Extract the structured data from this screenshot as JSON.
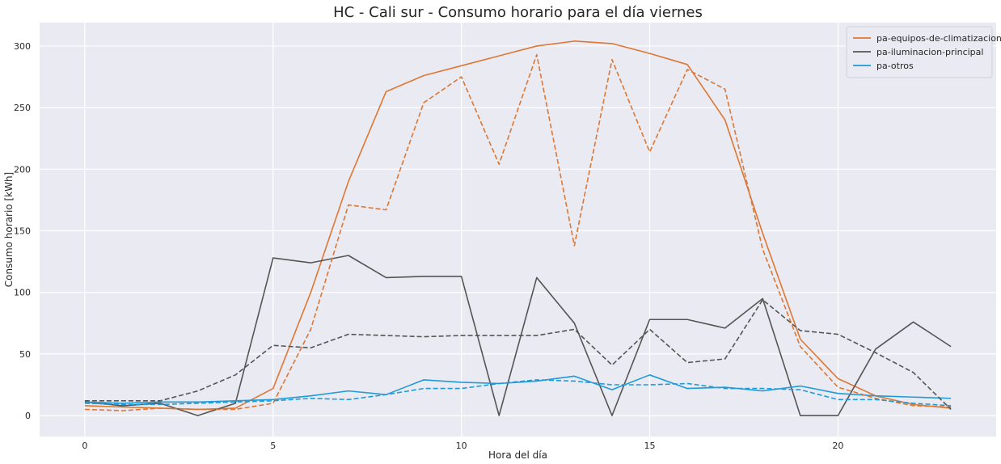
{
  "chart_data": {
    "type": "line",
    "title": "HC - Cali sur - Consumo horario para el día viernes",
    "xlabel": "Hora del día",
    "ylabel": "Consumo horario [kWh]",
    "xlim": [
      -1.2,
      24.2
    ],
    "ylim": [
      -17,
      319
    ],
    "x_ticks": [
      0,
      5,
      10,
      15,
      20
    ],
    "y_ticks": [
      0,
      50,
      100,
      150,
      200,
      250,
      300
    ],
    "grid": true,
    "legend_position": "top-right",
    "background": "#eaeaf2",
    "x": [
      0,
      1,
      2,
      3,
      4,
      5,
      6,
      7,
      8,
      9,
      10,
      11,
      12,
      13,
      14,
      15,
      16,
      17,
      18,
      19,
      20,
      21,
      22,
      23
    ],
    "series": [
      {
        "name": "pa-equipos-de-climatizacion",
        "color": "#dd7733",
        "style": "solid",
        "values": [
          8,
          7,
          6,
          5,
          6,
          22,
          100,
          190,
          263,
          276,
          284,
          292,
          300,
          304,
          302,
          294,
          285,
          240,
          148,
          62,
          30,
          16,
          9,
          6
        ]
      },
      {
        "name": "pa-iluminacion-principal",
        "color": "#555555",
        "style": "solid",
        "values": [
          11,
          8,
          10,
          0,
          10,
          128,
          124,
          130,
          112,
          113,
          113,
          0,
          112,
          75,
          0,
          78,
          78,
          71,
          95,
          0,
          0,
          54,
          76,
          56
        ]
      },
      {
        "name": "pa-otros",
        "color": "#1f9bd7",
        "style": "solid",
        "values": [
          11,
          10,
          11,
          11,
          12,
          13,
          16,
          20,
          17,
          29,
          27,
          26,
          28,
          32,
          21,
          33,
          22,
          23,
          20,
          24,
          18,
          16,
          15,
          14
        ]
      },
      {
        "name": "",
        "color": "#dd7733",
        "style": "dashed",
        "values": [
          5,
          4,
          6,
          5,
          5,
          10,
          70,
          171,
          167,
          254,
          275,
          204,
          293,
          138,
          289,
          214,
          281,
          265,
          135,
          56,
          23,
          14,
          8,
          7
        ]
      },
      {
        "name": "",
        "color": "#555555",
        "style": "dashed",
        "values": [
          12,
          12,
          12,
          20,
          33,
          57,
          55,
          66,
          65,
          64,
          65,
          65,
          65,
          70,
          41,
          70,
          43,
          46,
          94,
          69,
          66,
          51,
          35,
          5
        ]
      },
      {
        "name": "",
        "color": "#1f9bd7",
        "style": "dashed",
        "values": [
          10,
          9,
          9,
          10,
          11,
          12,
          14,
          13,
          17,
          22,
          22,
          26,
          29,
          28,
          25,
          25,
          26,
          22,
          22,
          21,
          13,
          13,
          10,
          8
        ]
      }
    ]
  }
}
